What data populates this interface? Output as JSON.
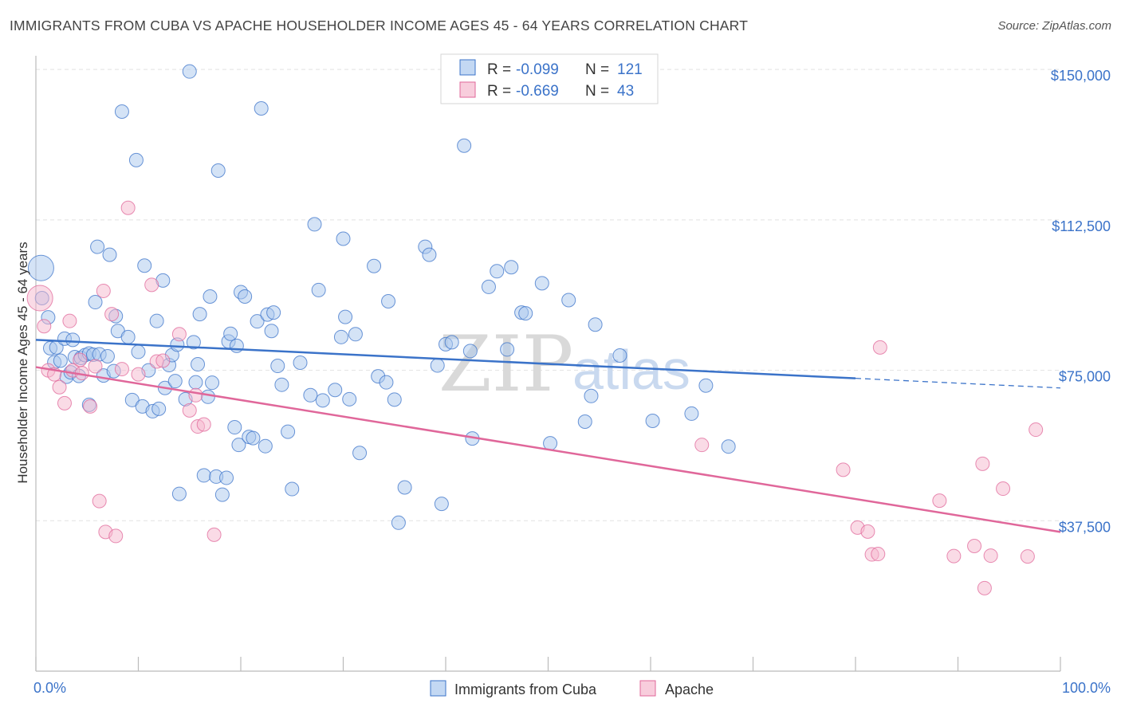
{
  "title": "IMMIGRANTS FROM CUBA VS APACHE HOUSEHOLDER INCOME AGES 45 - 64 YEARS CORRELATION CHART",
  "source": "Source: ZipAtlas.com",
  "watermark": {
    "zip": "ZIP",
    "atlas": "atlas"
  },
  "colors": {
    "blue": "#3b73c9",
    "blue_fill": "#a9c8ee",
    "pink": "#e0679a",
    "pink_fill": "#f5b8cd",
    "grid": "#e2e2e2"
  },
  "chart_data": {
    "type": "scatter",
    "ylabel": "Householder Income Ages 45 - 64 years",
    "xlim": [
      0,
      100
    ],
    "ylim": [
      0,
      155000
    ],
    "x_tick_labels": [
      "0.0%",
      "100.0%"
    ],
    "y_ticks": [
      {
        "value": 37500,
        "label": "$37,500"
      },
      {
        "value": 75000,
        "label": "$75,000"
      },
      {
        "value": 112500,
        "label": "$112,500"
      },
      {
        "value": 150000,
        "label": "$150,000"
      }
    ],
    "grid": true,
    "legend_placement": "top-center",
    "stats": [
      {
        "r_label": "R =",
        "r_value": "-0.099",
        "n_label": "N =",
        "n_value": "121"
      },
      {
        "r_label": "R =",
        "r_value": "-0.669",
        "n_label": "N =",
        "n_value": "43"
      }
    ],
    "series": [
      {
        "name": "Immigrants from Cuba",
        "trend": {
          "x": [
            0,
            80
          ],
          "y": [
            82600,
            73000
          ]
        },
        "trend_dashed": {
          "x": [
            80,
            100
          ],
          "y": [
            73000,
            70600
          ]
        },
        "points": [
          {
            "x": 0.5,
            "y": 100500,
            "big": true
          },
          {
            "x": 0.6,
            "y": 93000
          },
          {
            "x": 1.2,
            "y": 88200
          },
          {
            "x": 1.4,
            "y": 80500
          },
          {
            "x": 1.8,
            "y": 77000
          },
          {
            "x": 2.0,
            "y": 80700
          },
          {
            "x": 2.4,
            "y": 77400
          },
          {
            "x": 2.8,
            "y": 82900
          },
          {
            "x": 3.0,
            "y": 73400
          },
          {
            "x": 3.4,
            "y": 74500
          },
          {
            "x": 3.6,
            "y": 82600
          },
          {
            "x": 3.8,
            "y": 78300
          },
          {
            "x": 4.2,
            "y": 73600
          },
          {
            "x": 4.4,
            "y": 78100
          },
          {
            "x": 4.8,
            "y": 78800
          },
          {
            "x": 5.2,
            "y": 79200
          },
          {
            "x": 5.2,
            "y": 66400
          },
          {
            "x": 5.6,
            "y": 78900
          },
          {
            "x": 5.8,
            "y": 92000
          },
          {
            "x": 6.0,
            "y": 105800
          },
          {
            "x": 6.2,
            "y": 79000
          },
          {
            "x": 6.6,
            "y": 73700
          },
          {
            "x": 7.0,
            "y": 78500
          },
          {
            "x": 7.2,
            "y": 103800
          },
          {
            "x": 7.6,
            "y": 74800
          },
          {
            "x": 7.8,
            "y": 88500
          },
          {
            "x": 8.0,
            "y": 84800
          },
          {
            "x": 8.4,
            "y": 139500
          },
          {
            "x": 9.0,
            "y": 83300
          },
          {
            "x": 9.4,
            "y": 67600
          },
          {
            "x": 9.8,
            "y": 127400
          },
          {
            "x": 10.0,
            "y": 79600
          },
          {
            "x": 10.4,
            "y": 66000
          },
          {
            "x": 10.6,
            "y": 101100
          },
          {
            "x": 11.0,
            "y": 75000
          },
          {
            "x": 11.4,
            "y": 64800
          },
          {
            "x": 11.8,
            "y": 87300
          },
          {
            "x": 12.0,
            "y": 65400
          },
          {
            "x": 12.4,
            "y": 97400
          },
          {
            "x": 12.6,
            "y": 70600
          },
          {
            "x": 13.0,
            "y": 76300
          },
          {
            "x": 13.3,
            "y": 78800
          },
          {
            "x": 13.6,
            "y": 72300
          },
          {
            "x": 13.8,
            "y": 81400
          },
          {
            "x": 14.0,
            "y": 44200
          },
          {
            "x": 14.6,
            "y": 67800
          },
          {
            "x": 15.0,
            "y": 149500
          },
          {
            "x": 15.4,
            "y": 82000
          },
          {
            "x": 15.6,
            "y": 72000
          },
          {
            "x": 15.8,
            "y": 76500
          },
          {
            "x": 16.0,
            "y": 89000
          },
          {
            "x": 16.4,
            "y": 48800
          },
          {
            "x": 16.8,
            "y": 68400
          },
          {
            "x": 17.0,
            "y": 93400
          },
          {
            "x": 17.2,
            "y": 71900
          },
          {
            "x": 17.6,
            "y": 48500
          },
          {
            "x": 17.8,
            "y": 124800
          },
          {
            "x": 18.2,
            "y": 44000
          },
          {
            "x": 18.6,
            "y": 48200
          },
          {
            "x": 18.8,
            "y": 82200
          },
          {
            "x": 19.0,
            "y": 84100
          },
          {
            "x": 19.4,
            "y": 60800
          },
          {
            "x": 19.6,
            "y": 81100
          },
          {
            "x": 19.8,
            "y": 56400
          },
          {
            "x": 20.0,
            "y": 94500
          },
          {
            "x": 20.4,
            "y": 93400
          },
          {
            "x": 20.8,
            "y": 58400
          },
          {
            "x": 21.2,
            "y": 58100
          },
          {
            "x": 21.6,
            "y": 87200
          },
          {
            "x": 22.0,
            "y": 140300
          },
          {
            "x": 22.4,
            "y": 56100
          },
          {
            "x": 22.6,
            "y": 88900
          },
          {
            "x": 23.0,
            "y": 84800
          },
          {
            "x": 23.2,
            "y": 89400
          },
          {
            "x": 23.6,
            "y": 76100
          },
          {
            "x": 24.0,
            "y": 71400
          },
          {
            "x": 24.6,
            "y": 59700
          },
          {
            "x": 25.0,
            "y": 45400
          },
          {
            "x": 25.8,
            "y": 76900
          },
          {
            "x": 26.8,
            "y": 68800
          },
          {
            "x": 27.2,
            "y": 111400
          },
          {
            "x": 27.6,
            "y": 95000
          },
          {
            "x": 28.0,
            "y": 67500
          },
          {
            "x": 29.2,
            "y": 70100
          },
          {
            "x": 29.8,
            "y": 83300
          },
          {
            "x": 30.0,
            "y": 107800
          },
          {
            "x": 30.2,
            "y": 88300
          },
          {
            "x": 30.6,
            "y": 67800
          },
          {
            "x": 31.2,
            "y": 84000
          },
          {
            "x": 31.6,
            "y": 54400
          },
          {
            "x": 33.0,
            "y": 101000
          },
          {
            "x": 33.4,
            "y": 73500
          },
          {
            "x": 34.2,
            "y": 72000
          },
          {
            "x": 34.4,
            "y": 92200
          },
          {
            "x": 35.0,
            "y": 67700
          },
          {
            "x": 35.4,
            "y": 37000
          },
          {
            "x": 36.0,
            "y": 45800
          },
          {
            "x": 38.0,
            "y": 105800
          },
          {
            "x": 38.4,
            "y": 103800
          },
          {
            "x": 39.2,
            "y": 76200
          },
          {
            "x": 39.6,
            "y": 41700
          },
          {
            "x": 40.0,
            "y": 81500
          },
          {
            "x": 40.6,
            "y": 82000
          },
          {
            "x": 41.8,
            "y": 131000
          },
          {
            "x": 42.4,
            "y": 79800
          },
          {
            "x": 42.6,
            "y": 58000
          },
          {
            "x": 44.2,
            "y": 95800
          },
          {
            "x": 45.0,
            "y": 99700
          },
          {
            "x": 46.0,
            "y": 80200
          },
          {
            "x": 46.4,
            "y": 100700
          },
          {
            "x": 47.4,
            "y": 89400
          },
          {
            "x": 47.8,
            "y": 89200
          },
          {
            "x": 49.4,
            "y": 96700
          },
          {
            "x": 50.2,
            "y": 56800
          },
          {
            "x": 52.0,
            "y": 92500
          },
          {
            "x": 53.6,
            "y": 62200
          },
          {
            "x": 54.2,
            "y": 68600
          },
          {
            "x": 54.6,
            "y": 86400
          },
          {
            "x": 57.0,
            "y": 78700
          },
          {
            "x": 60.2,
            "y": 62400
          },
          {
            "x": 64.0,
            "y": 64200
          },
          {
            "x": 65.4,
            "y": 71200
          },
          {
            "x": 67.6,
            "y": 56000
          }
        ]
      },
      {
        "name": "Apache",
        "trend": {
          "x": [
            0,
            100
          ],
          "y": [
            75800,
            34700
          ]
        },
        "points": [
          {
            "x": 0.4,
            "y": 93000,
            "big": true
          },
          {
            "x": 0.8,
            "y": 86000
          },
          {
            "x": 1.2,
            "y": 75000
          },
          {
            "x": 1.8,
            "y": 74000
          },
          {
            "x": 2.3,
            "y": 70800
          },
          {
            "x": 2.8,
            "y": 66800
          },
          {
            "x": 3.3,
            "y": 87300
          },
          {
            "x": 3.6,
            "y": 75000
          },
          {
            "x": 4.3,
            "y": 77600
          },
          {
            "x": 4.5,
            "y": 74300
          },
          {
            "x": 5.3,
            "y": 66000
          },
          {
            "x": 5.8,
            "y": 76000
          },
          {
            "x": 6.6,
            "y": 94800
          },
          {
            "x": 6.2,
            "y": 42400
          },
          {
            "x": 6.8,
            "y": 34700
          },
          {
            "x": 7.4,
            "y": 89000
          },
          {
            "x": 7.8,
            "y": 33700
          },
          {
            "x": 8.4,
            "y": 75300
          },
          {
            "x": 9.0,
            "y": 115500
          },
          {
            "x": 10.0,
            "y": 74000
          },
          {
            "x": 11.3,
            "y": 96300
          },
          {
            "x": 11.8,
            "y": 77200
          },
          {
            "x": 12.4,
            "y": 77400
          },
          {
            "x": 14.0,
            "y": 84000
          },
          {
            "x": 15.0,
            "y": 65000
          },
          {
            "x": 15.6,
            "y": 68800
          },
          {
            "x": 15.8,
            "y": 61000
          },
          {
            "x": 16.4,
            "y": 61500
          },
          {
            "x": 17.4,
            "y": 34000
          },
          {
            "x": 65.0,
            "y": 56400
          },
          {
            "x": 78.8,
            "y": 50200
          },
          {
            "x": 80.2,
            "y": 35800
          },
          {
            "x": 81.2,
            "y": 34800
          },
          {
            "x": 81.6,
            "y": 29100
          },
          {
            "x": 82.2,
            "y": 29200
          },
          {
            "x": 82.4,
            "y": 80700
          },
          {
            "x": 88.2,
            "y": 42500
          },
          {
            "x": 89.6,
            "y": 28700
          },
          {
            "x": 91.6,
            "y": 31200
          },
          {
            "x": 92.4,
            "y": 51700
          },
          {
            "x": 92.6,
            "y": 20700
          },
          {
            "x": 93.2,
            "y": 28800
          },
          {
            "x": 94.4,
            "y": 45500
          },
          {
            "x": 96.8,
            "y": 28600
          },
          {
            "x": 97.6,
            "y": 60200
          }
        ]
      }
    ]
  }
}
